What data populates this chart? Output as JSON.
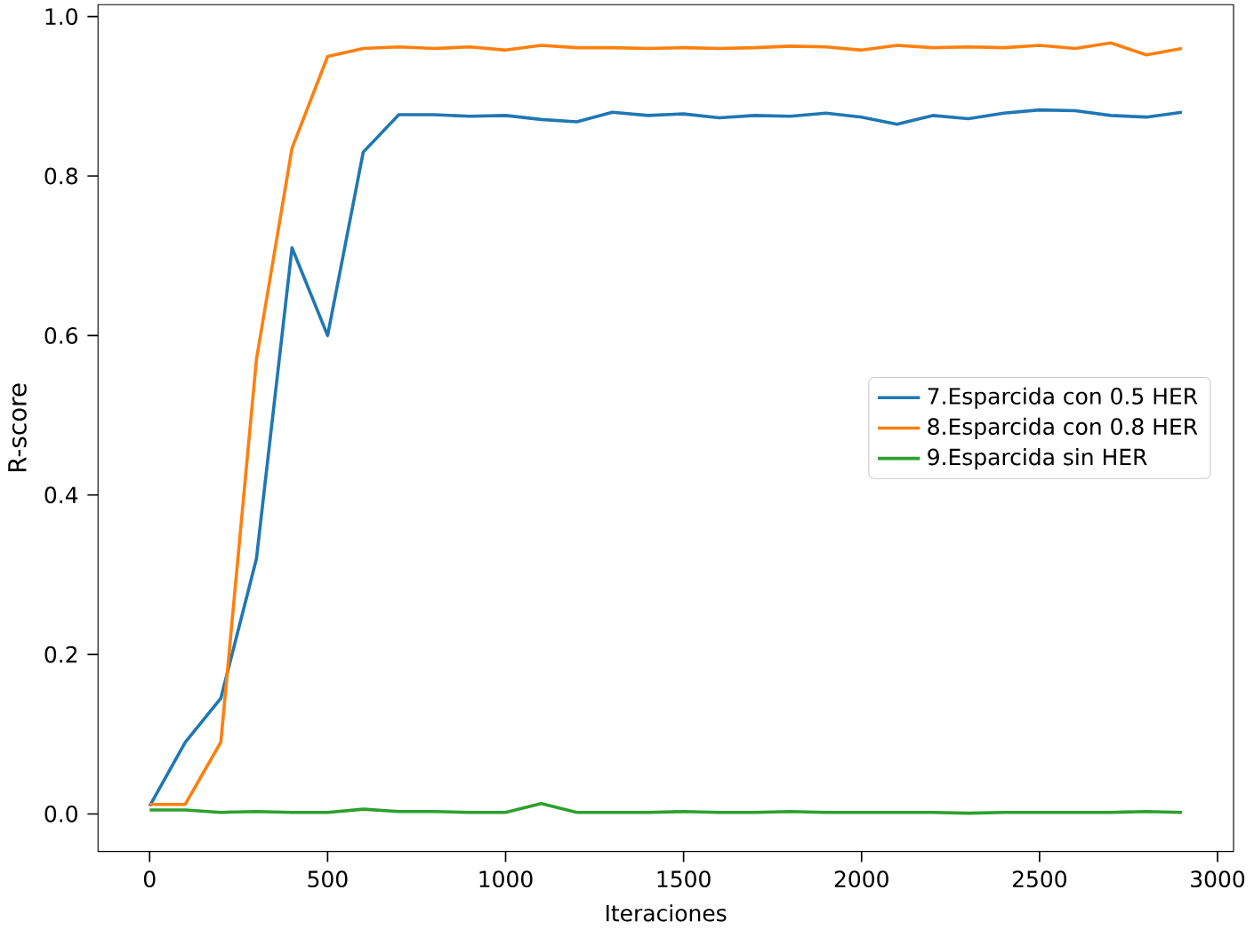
{
  "chart_data": {
    "type": "line",
    "xlabel": "Iteraciones",
    "ylabel": "R-score",
    "x": [
      0,
      100,
      200,
      300,
      400,
      500,
      600,
      700,
      800,
      900,
      1000,
      1100,
      1200,
      1300,
      1400,
      1500,
      1600,
      1700,
      1800,
      1900,
      2000,
      2100,
      2200,
      2300,
      2400,
      2500,
      2600,
      2700,
      2800,
      2900
    ],
    "series": [
      {
        "name": "7.Esparcida con 0.5 HER",
        "color": "#1f77b4",
        "values": [
          0.01,
          0.09,
          0.145,
          0.32,
          0.71,
          0.6,
          0.83,
          0.877,
          0.877,
          0.875,
          0.876,
          0.871,
          0.868,
          0.88,
          0.876,
          0.878,
          0.873,
          0.876,
          0.875,
          0.879,
          0.874,
          0.865,
          0.876,
          0.872,
          0.879,
          0.883,
          0.882,
          0.876,
          0.874,
          0.88
        ]
      },
      {
        "name": "8.Esparcida con 0.8 HER",
        "color": "#ff7f0e",
        "values": [
          0.012,
          0.012,
          0.09,
          0.57,
          0.835,
          0.95,
          0.96,
          0.962,
          0.96,
          0.962,
          0.958,
          0.964,
          0.961,
          0.961,
          0.96,
          0.961,
          0.96,
          0.961,
          0.963,
          0.962,
          0.958,
          0.964,
          0.961,
          0.962,
          0.961,
          0.964,
          0.96,
          0.967,
          0.952,
          0.96
        ]
      },
      {
        "name": "9.Esparcida sin HER",
        "color": "#2ca02c",
        "values": [
          0.005,
          0.005,
          0.002,
          0.003,
          0.002,
          0.002,
          0.006,
          0.003,
          0.003,
          0.002,
          0.002,
          0.013,
          0.002,
          0.002,
          0.002,
          0.003,
          0.002,
          0.002,
          0.003,
          0.002,
          0.002,
          0.002,
          0.002,
          0.001,
          0.002,
          0.002,
          0.002,
          0.002,
          0.003,
          0.002
        ]
      }
    ],
    "xlim": [
      -145,
      3045
    ],
    "ylim": [
      -0.047,
      1.015
    ],
    "xticks": [
      0,
      500,
      1000,
      1500,
      2000,
      2500,
      3000
    ],
    "yticks": [
      {
        "value": 0,
        "label": "0.0"
      },
      {
        "value": 0.2,
        "label": "0.2"
      },
      {
        "value": 0.4,
        "label": "0.4"
      },
      {
        "value": 0.6,
        "label": "0.6"
      },
      {
        "value": 0.8,
        "label": "0.8"
      },
      {
        "value": 1.0,
        "label": "1.0"
      }
    ],
    "legend": "right",
    "grid": false,
    "marker": "none",
    "line_style": "solid"
  }
}
